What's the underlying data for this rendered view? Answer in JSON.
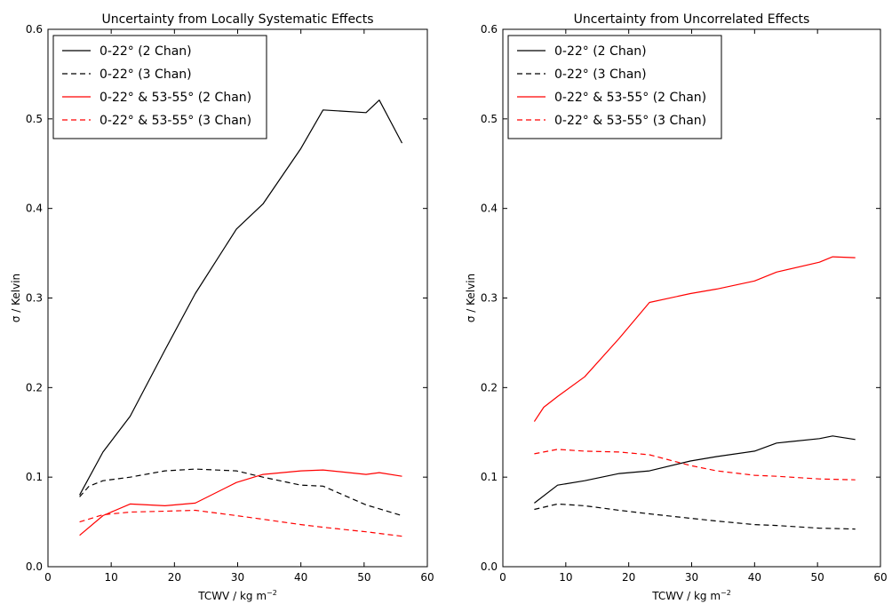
{
  "chart_data": [
    {
      "type": "line",
      "title": "Uncertainty from Locally Systematic Effects",
      "xlabel": "TCWV / kg m",
      "xlabel_sup": "−2",
      "ylabel": "σ / Kelvin",
      "xlim": [
        0,
        60
      ],
      "ylim": [
        0.0,
        0.6
      ],
      "xticks": [
        "0",
        "10",
        "20",
        "30",
        "40",
        "50",
        "60"
      ],
      "yticks": [
        "0.0",
        "0.1",
        "0.2",
        "0.3",
        "0.4",
        "0.5",
        "0.6"
      ],
      "legend_position": "top-left",
      "grid": false,
      "series": [
        {
          "name": "0-22° (2 Chan)",
          "color": "#000000",
          "dash": "solid",
          "x": [
            5,
            8.7,
            13,
            18.5,
            23.3,
            29.8,
            34,
            40,
            43.5,
            50.3,
            52.4,
            56
          ],
          "y": [
            0.08,
            0.128,
            0.168,
            0.242,
            0.305,
            0.377,
            0.405,
            0.467,
            0.51,
            0.507,
            0.521,
            0.473
          ]
        },
        {
          "name": "0-22° (3 Chan)",
          "color": "#000000",
          "dash": "dashed",
          "x": [
            5,
            6.5,
            8.7,
            13,
            18.5,
            23.3,
            29.8,
            34,
            40,
            43.5,
            50.3,
            56
          ],
          "y": [
            0.078,
            0.09,
            0.096,
            0.1,
            0.107,
            0.109,
            0.107,
            0.1,
            0.091,
            0.09,
            0.069,
            0.057
          ]
        },
        {
          "name": "0-22° & 53-55° (2 Chan)",
          "color": "#ff0000",
          "dash": "solid",
          "x": [
            5,
            8.7,
            13,
            18.5,
            23.3,
            29.8,
            34,
            40,
            43.5,
            50.3,
            52.4,
            56
          ],
          "y": [
            0.035,
            0.057,
            0.07,
            0.068,
            0.071,
            0.094,
            0.103,
            0.107,
            0.108,
            0.103,
            0.105,
            0.101
          ]
        },
        {
          "name": "0-22° & 53-55° (3 Chan)",
          "color": "#ff0000",
          "dash": "dashed",
          "x": [
            5,
            8.7,
            13,
            18.5,
            23.3,
            29.8,
            34,
            40,
            43.5,
            50.3,
            56
          ],
          "y": [
            0.05,
            0.058,
            0.061,
            0.062,
            0.063,
            0.057,
            0.053,
            0.047,
            0.044,
            0.039,
            0.034
          ]
        }
      ]
    },
    {
      "type": "line",
      "title": "Uncertainty from Uncorrelated Effects",
      "xlabel": "TCWV / kg m",
      "xlabel_sup": "−2",
      "ylabel": "σ / Kelvin",
      "xlim": [
        0,
        60
      ],
      "ylim": [
        0.0,
        0.6
      ],
      "xticks": [
        "0",
        "10",
        "20",
        "30",
        "40",
        "50",
        "60"
      ],
      "yticks": [
        "0.0",
        "0.1",
        "0.2",
        "0.3",
        "0.4",
        "0.5",
        "0.6"
      ],
      "legend_position": "top-left",
      "grid": false,
      "series": [
        {
          "name": "0-22° (2 Chan)",
          "color": "#000000",
          "dash": "solid",
          "x": [
            5,
            8.7,
            13,
            18.5,
            23.3,
            29.8,
            34,
            40,
            43.5,
            50.3,
            52.4,
            56
          ],
          "y": [
            0.071,
            0.091,
            0.096,
            0.104,
            0.107,
            0.118,
            0.123,
            0.129,
            0.138,
            0.143,
            0.146,
            0.142
          ]
        },
        {
          "name": "0-22° (3 Chan)",
          "color": "#000000",
          "dash": "dashed",
          "x": [
            5,
            8.7,
            13,
            18.5,
            23.3,
            29.8,
            34,
            40,
            43.5,
            50.3,
            56
          ],
          "y": [
            0.064,
            0.07,
            0.068,
            0.063,
            0.059,
            0.054,
            0.051,
            0.047,
            0.046,
            0.043,
            0.042
          ]
        },
        {
          "name": "0-22° & 53-55° (2 Chan)",
          "color": "#ff0000",
          "dash": "solid",
          "x": [
            5,
            6.5,
            8.7,
            13,
            18.5,
            23.3,
            29.8,
            34,
            40,
            43.5,
            50.3,
            52.4,
            56
          ],
          "y": [
            0.162,
            0.178,
            0.19,
            0.212,
            0.255,
            0.295,
            0.305,
            0.31,
            0.319,
            0.329,
            0.34,
            0.346,
            0.345
          ]
        },
        {
          "name": "0-22° & 53-55° (3 Chan)",
          "color": "#ff0000",
          "dash": "dashed",
          "x": [
            5,
            8.7,
            13,
            18.5,
            23.3,
            29.8,
            34,
            40,
            43.5,
            50.3,
            56
          ],
          "y": [
            0.126,
            0.131,
            0.129,
            0.128,
            0.125,
            0.113,
            0.107,
            0.102,
            0.101,
            0.098,
            0.097
          ]
        }
      ]
    }
  ]
}
